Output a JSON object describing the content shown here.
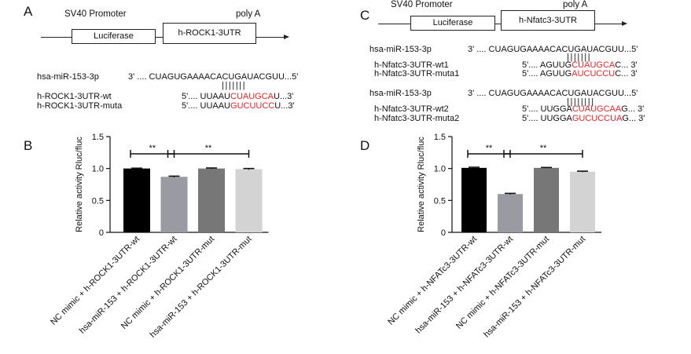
{
  "panelA": {
    "letter": "A",
    "promoter": "SV40 Promoter",
    "polya": "poly A",
    "box1": "Luciferase",
    "box2": "h-ROCK1-3UTR",
    "mir_label": "hsa-miR-153-3p",
    "mir_seq": "3' .... CUAGUGAAAACACUGAUACGUU...5'",
    "wt_label": "h-ROCK1-3UTR-wt",
    "wt_pre": "5'.... UUAAU",
    "wt_red": "CUAUGCA",
    "wt_post": "U...3'",
    "mut_label": "h-ROCK1-3UTR-muta",
    "mut_pre": "5'.... UUAAU",
    "mut_red": "GUCUUCC",
    "mut_post": "U...3'"
  },
  "panelC": {
    "letter": "C",
    "promoter": "SV40 Promoter",
    "polya": "poly A",
    "box1": "Luciferase",
    "box2": "h-Nfatc3-3UTR",
    "mir1_label": "hsa-miR-153-3p",
    "mir1_seq": "3' .... CUAGUGAAAACACUGAUACGUU...5'",
    "wt1_label": "h-Nfatc3-3UTR-wt1",
    "wt1_pre": "5'.... AGUUG",
    "wt1_red": "CUAUGCA",
    "wt1_post": "C... 3'",
    "mut1_label": "h-Nfatc3-3UTR-muta1",
    "mut1_pre": "5'.... AGUUG",
    "mut1_red": "AUCUCCU",
    "mut1_post": "C... 3'",
    "mir2_label": "hsa-miR-153-3p",
    "mir2_seq": "3' .... CUAGUGAAAACACUGAUACGUU...5'",
    "wt2_label": "h-Nfatc3-3UTR-wt2",
    "wt2_pre": "5'.... UUGGA",
    "wt2_red": "CUAUGCAA",
    "wt2_post": "G... 3'",
    "mut2_label": "h-Nfatc3-3UTR-muta2",
    "mut2_pre": "5'.... UUGGA",
    "mut2_red": "GUCUCCUA",
    "mut2_post": "G... 3'"
  },
  "chart_data": [
    {
      "panel": "B",
      "type": "bar",
      "ylabel": "Relative activity Rluc/fluc",
      "ylim": [
        0,
        1.5
      ],
      "yticks": [
        "0",
        "0.5",
        "1.0",
        "1.5"
      ],
      "categories": [
        "NC mimic + h-ROCK1-3UTR-wt",
        "hsa-miR-153 + h-ROCK1-3UTR-wt",
        "NC mimic + h-ROCK1-3UTR-mut",
        "hsa-miR-153 + h-ROCK1-3UTR-mut"
      ],
      "values": [
        1.0,
        0.87,
        1.0,
        0.99
      ],
      "errors": [
        0.005,
        0.01,
        0.008,
        0.01
      ],
      "colors": [
        "#000000",
        "#9a9aa2",
        "#777777",
        "#d3d3d3"
      ],
      "significance": [
        {
          "label": "**",
          "from": 0,
          "to": 1
        },
        {
          "label": "**",
          "from": 1,
          "to": 3
        }
      ]
    },
    {
      "panel": "D",
      "type": "bar",
      "ylabel": "Relative activity Rluc/fluc",
      "ylim": [
        0,
        1.5
      ],
      "yticks": [
        "0",
        "0.5",
        "1.0",
        "1.5"
      ],
      "categories": [
        "NC mimic + h-NFATc3-3UTR-wt",
        "hsa-miR-153 + h-NFATc3-3UTR-wt",
        "NC mimic + h-NFATc3-3UTR-mut",
        "hsa-miR-153 + h-NFATc3-3UTR-mut"
      ],
      "values": [
        1.01,
        0.6,
        1.01,
        0.95
      ],
      "errors": [
        0.01,
        0.01,
        0.006,
        0.008
      ],
      "colors": [
        "#000000",
        "#9a9aa2",
        "#777777",
        "#d3d3d3"
      ],
      "significance": [
        {
          "label": "**",
          "from": 0,
          "to": 1
        },
        {
          "label": "**",
          "from": 1,
          "to": 3
        }
      ]
    }
  ]
}
